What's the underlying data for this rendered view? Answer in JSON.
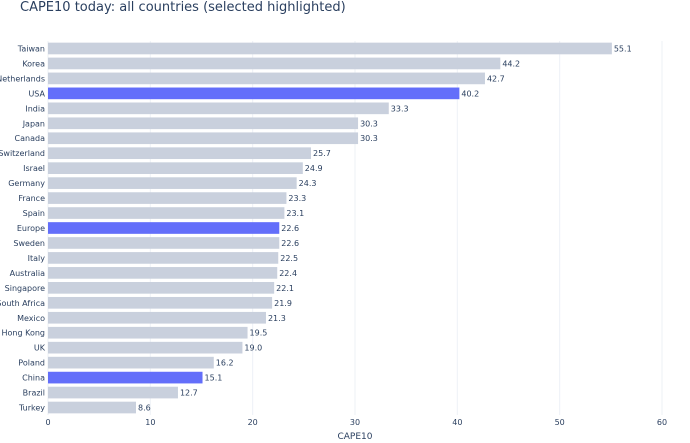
{
  "chart_data": {
    "type": "bar",
    "orientation": "horizontal",
    "title": "CAPE10 today: all countries (selected highlighted)",
    "xlabel": "CAPE10",
    "ylabel": "",
    "xlim": [
      0,
      60
    ],
    "xticks": [
      0,
      10,
      20,
      30,
      40,
      50,
      60
    ],
    "grid": true,
    "legend": "none",
    "colors": {
      "default": "#c9d0dd",
      "highlight": "#636efa",
      "text": "#2a3f5f",
      "grid": "#eef1f6"
    },
    "categories": [
      "Taiwan",
      "Korea",
      "Netherlands",
      "USA",
      "India",
      "Japan",
      "Canada",
      "Switzerland",
      "Israel",
      "Germany",
      "France",
      "Spain",
      "Europe",
      "Sweden",
      "Italy",
      "Australia",
      "Singapore",
      "South Africa",
      "Mexico",
      "Hong Kong",
      "UK",
      "Poland",
      "China",
      "Brazil",
      "Turkey"
    ],
    "values": [
      55.1,
      44.2,
      42.7,
      40.2,
      33.3,
      30.3,
      30.3,
      25.7,
      24.9,
      24.3,
      23.3,
      23.1,
      22.6,
      22.6,
      22.5,
      22.4,
      22.1,
      21.9,
      21.3,
      19.5,
      19.0,
      16.2,
      15.1,
      12.7,
      8.6
    ],
    "value_labels": [
      "55.1",
      "44.2",
      "42.7",
      "40.2",
      "33.3",
      "30.3",
      "30.3",
      "25.7",
      "24.9",
      "24.3",
      "23.3",
      "23.1",
      "22.6",
      "22.6",
      "22.5",
      "22.4",
      "22.1",
      "21.9",
      "21.3",
      "19.5",
      "19.0",
      "16.2",
      "15.1",
      "12.7",
      "8.6"
    ],
    "highlighted": [
      "USA",
      "Europe",
      "China"
    ]
  }
}
